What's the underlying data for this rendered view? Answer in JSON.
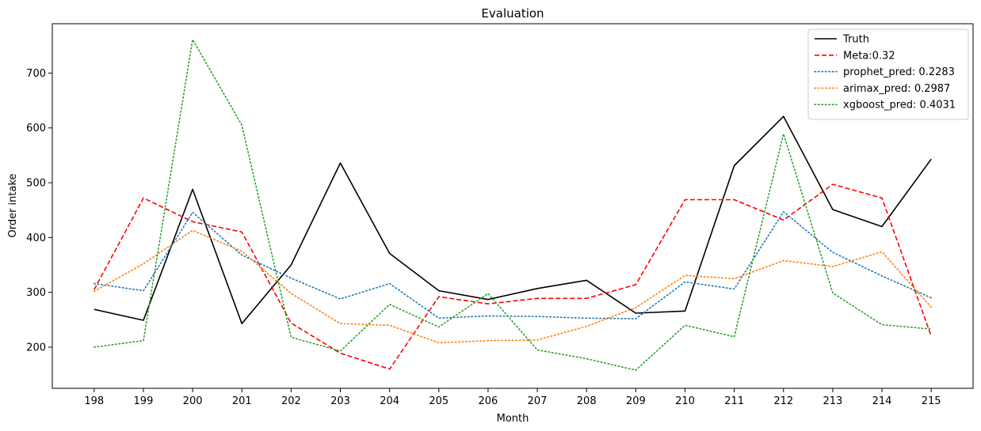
{
  "chart_data": {
    "type": "line",
    "title": "Evaluation",
    "xlabel": "Month",
    "ylabel": "Order intake",
    "x": [
      198,
      199,
      200,
      201,
      202,
      203,
      204,
      205,
      206,
      207,
      208,
      209,
      210,
      211,
      212,
      213,
      214,
      215
    ],
    "x_tick_labels": [
      "198",
      "199",
      "200",
      "201",
      "202",
      "203",
      "204",
      "205",
      "206",
      "207",
      "208",
      "209",
      "210",
      "211",
      "212",
      "213",
      "214",
      "215"
    ],
    "ylim": [
      125,
      790
    ],
    "y_ticks": [
      200,
      300,
      400,
      500,
      600,
      700
    ],
    "y_tick_labels": [
      "200",
      "300",
      "400",
      "500",
      "600",
      "700"
    ],
    "grid": false,
    "legend_position": "top-right",
    "series": [
      {
        "name": "Truth",
        "color": "#000000",
        "style": "solid",
        "values": [
          269,
          249,
          488,
          243,
          350,
          536,
          371,
          303,
          287,
          307,
          322,
          262,
          266,
          531,
          621,
          451,
          420,
          543
        ]
      },
      {
        "name": "Meta:0.32",
        "color": "#ff0000",
        "style": "dashed",
        "values": [
          305,
          472,
          429,
          410,
          244,
          189,
          160,
          292,
          279,
          289,
          289,
          314,
          469,
          469,
          432,
          497,
          472,
          220
        ]
      },
      {
        "name": "prophet_pred: 0.2283",
        "color": "#1f77b4",
        "style": "dotted",
        "values": [
          316,
          303,
          446,
          368,
          326,
          288,
          316,
          253,
          257,
          256,
          253,
          252,
          319,
          306,
          447,
          373,
          330,
          290
        ]
      },
      {
        "name": "arimax_pred: 0.2987",
        "color": "#ff7f0e",
        "style": "dotted",
        "values": [
          302,
          352,
          413,
          375,
          298,
          243,
          240,
          208,
          212,
          213,
          238,
          272,
          331,
          325,
          358,
          347,
          374,
          273
        ]
      },
      {
        "name": "xgboost_pred: 0.4031",
        "color": "#2ca02c",
        "style": "dotted",
        "values": [
          200,
          212,
          761,
          605,
          218,
          193,
          278,
          237,
          298,
          195,
          179,
          158,
          240,
          219,
          589,
          299,
          241,
          233
        ]
      }
    ]
  }
}
